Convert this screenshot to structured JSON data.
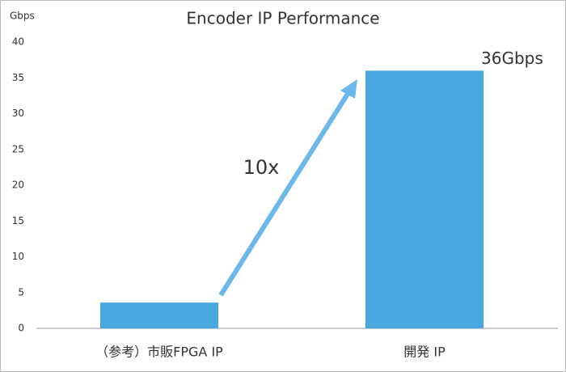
{
  "chart_data": {
    "type": "bar",
    "title": "Encoder IP Performance",
    "y_label": "Gbps",
    "categories": [
      "（参考）市販FPGA IP",
      "開発 IP"
    ],
    "values": [
      3.6,
      36
    ],
    "value_labels": [
      null,
      "36Gbps"
    ],
    "color": "#4aa6df",
    "ylim": [
      0,
      40
    ],
    "yticks": [
      0,
      5,
      10,
      15,
      20,
      25,
      30,
      35,
      40
    ],
    "grid": false,
    "annotation": "10x"
  }
}
